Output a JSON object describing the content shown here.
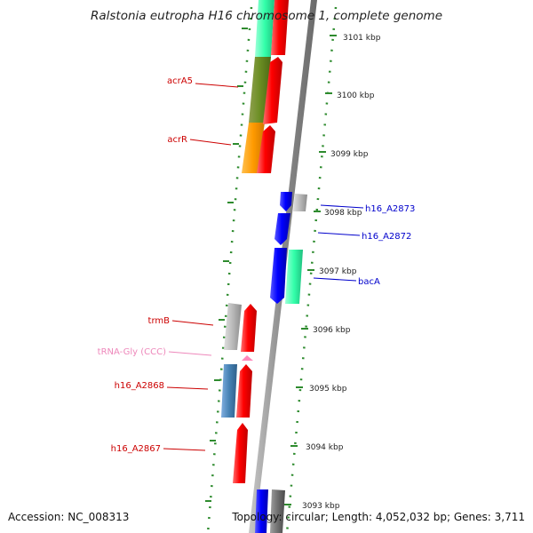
{
  "title": "Ralstonia eutropha H16 chromosome 1, complete genome",
  "footer": {
    "accession": "Accession: NC_008313",
    "info": "Topology: circular; Length: 4,052,032 bp; Genes: 3,711"
  },
  "colors": {
    "backbone": "#8a8a8a",
    "tick": "#2e8b2e",
    "label_left": "#cc0000",
    "label_right": "#0000cc",
    "label_trna": "#ee88bb"
  },
  "axis_ticks": [
    "3101 kbp",
    "3100 kbp",
    "3099 kbp",
    "3098 kbp",
    "3097 kbp",
    "3096 kbp",
    "3095 kbp",
    "3094 kbp",
    "3093 kbp"
  ],
  "gene_labels": {
    "acrA5": "acrA5",
    "acrR": "acrR",
    "h16_A2873": "h16_A2873",
    "h16_A2872": "h16_A2872",
    "bacA": "bacA",
    "trmB": "trmB",
    "trna": "tRNA-Gly (CCC)",
    "h16_A2868": "h16_A2868",
    "h16_A2867": "h16_A2867"
  }
}
